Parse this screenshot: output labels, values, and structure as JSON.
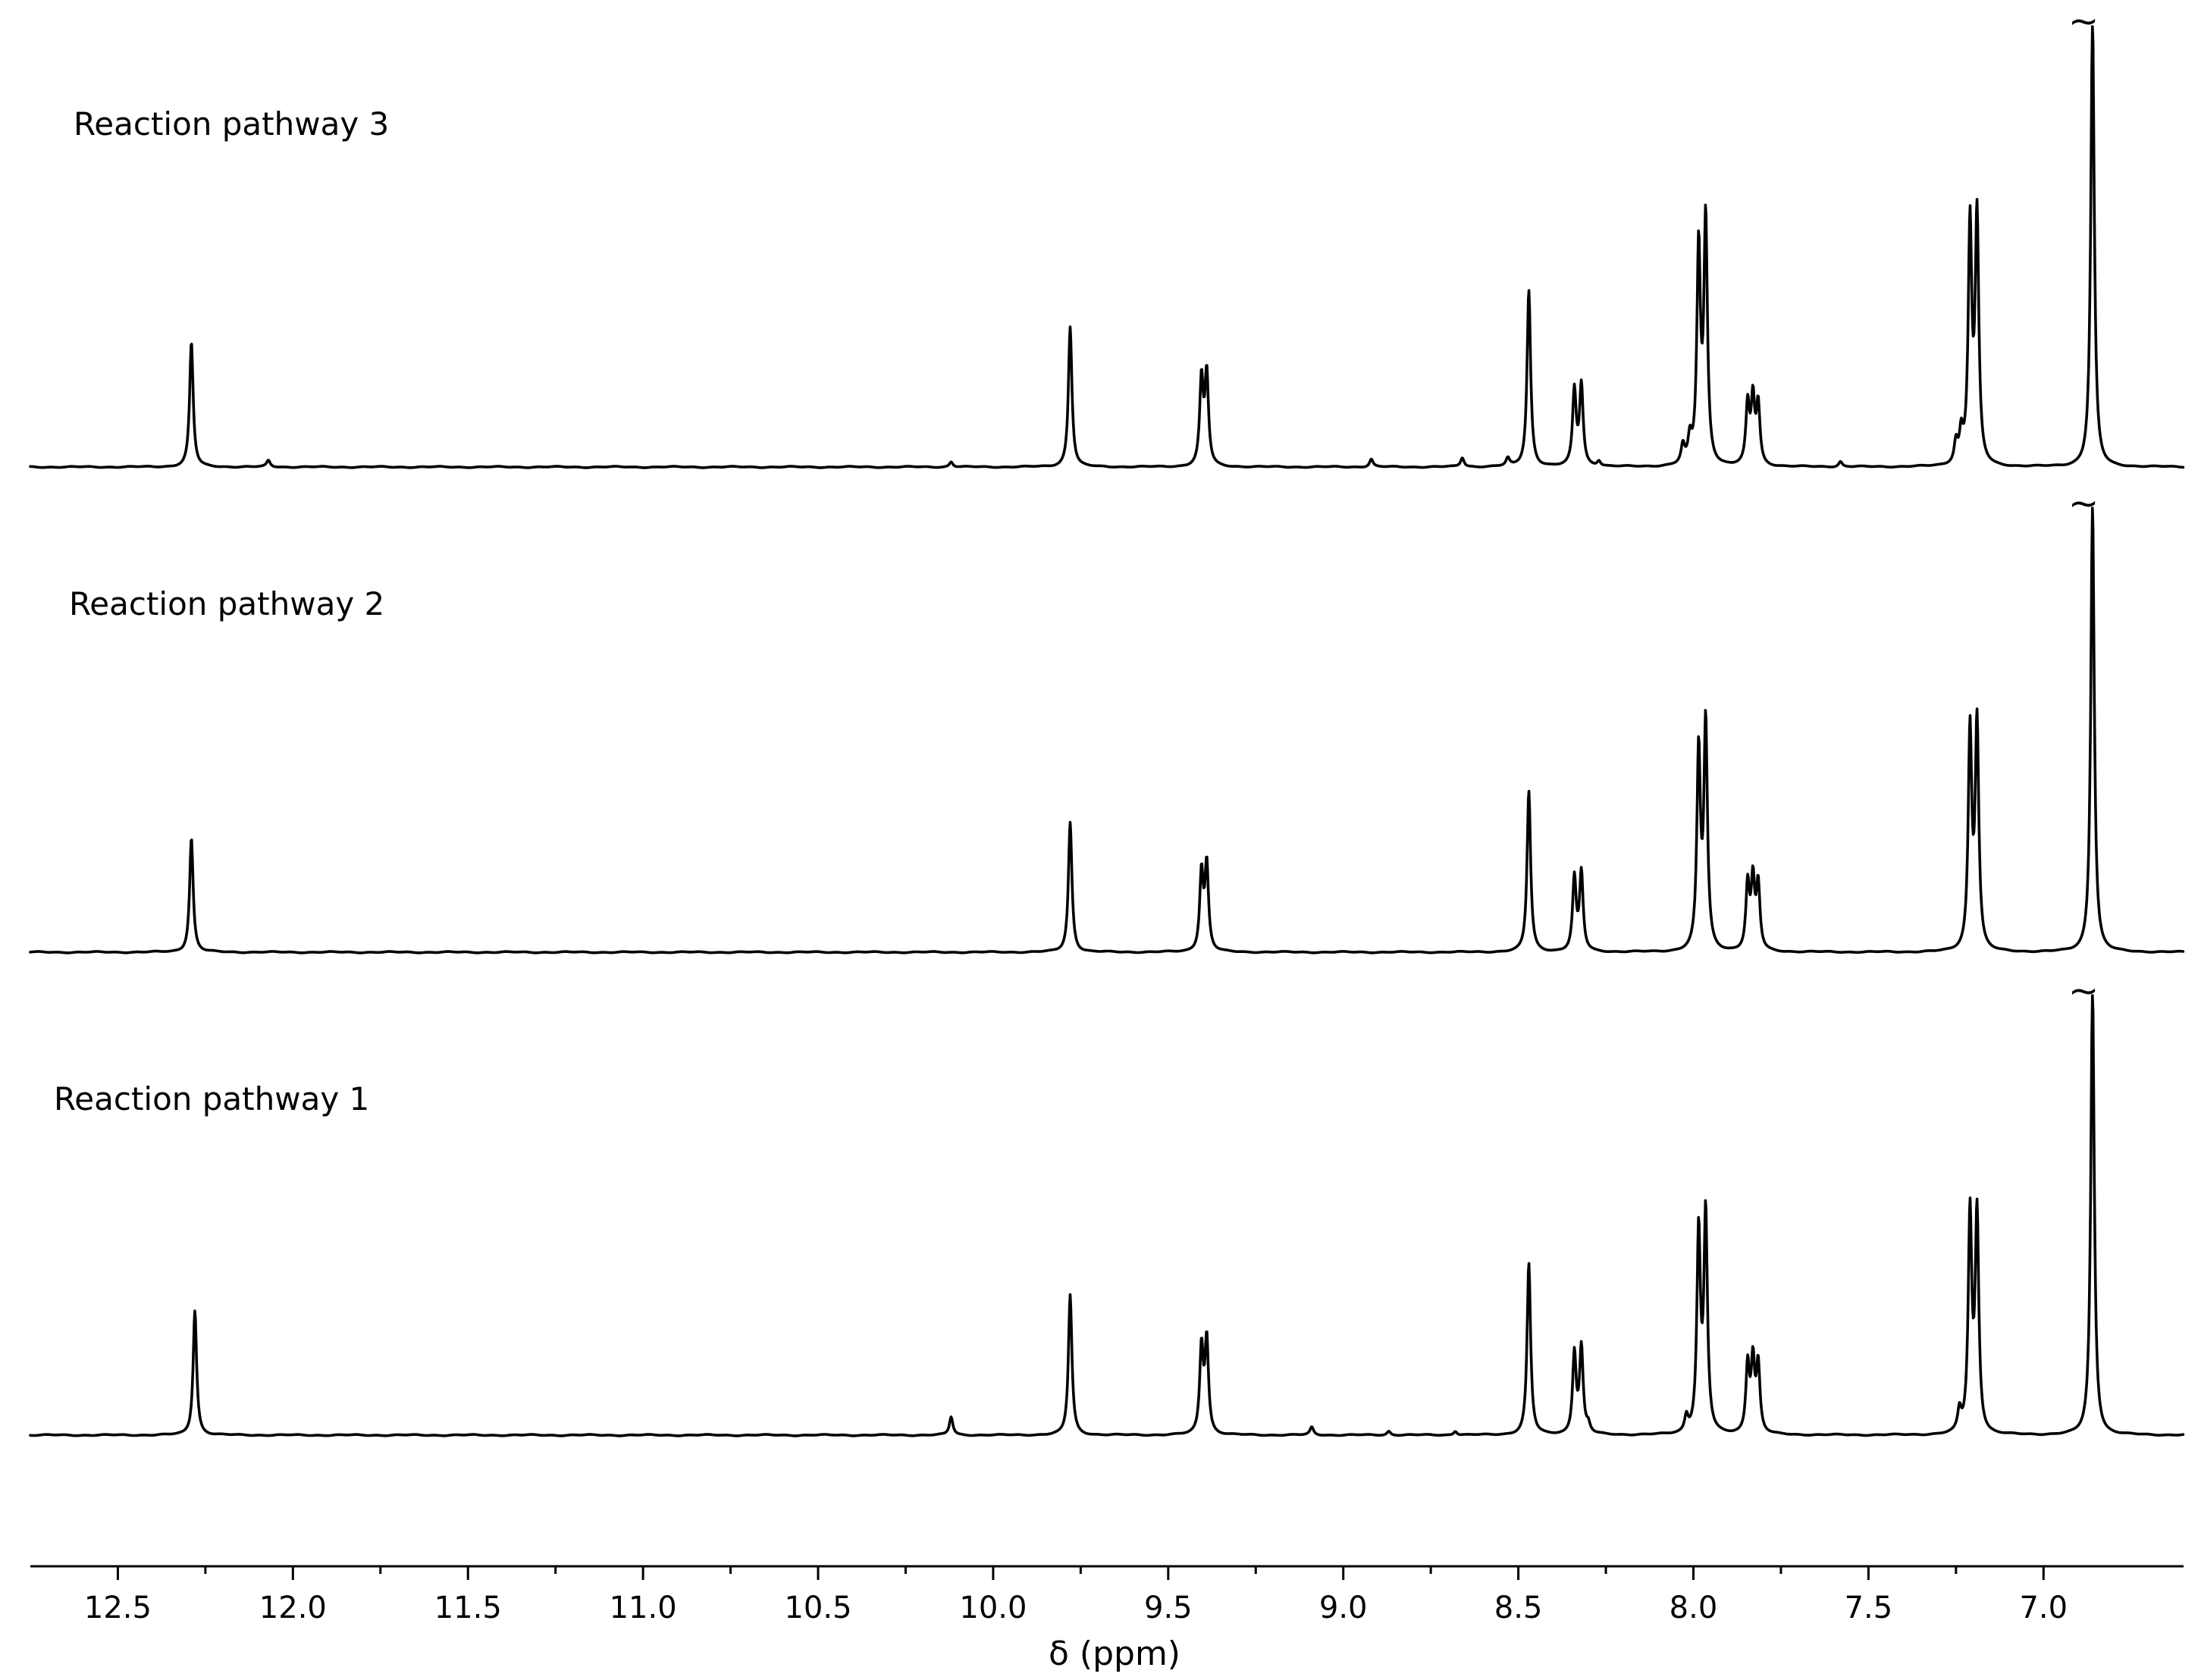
{
  "chart_data": {
    "type": "line",
    "title": "",
    "xlabel": "δ (ppm)",
    "ylabel": "",
    "xlim": [
      12.75,
      6.6
    ],
    "x_reversed": true,
    "grid": false,
    "legend": "none",
    "x_ticks": [
      {
        "value": 12.5,
        "label": "12.5"
      },
      {
        "value": 12.0,
        "label": "12.0"
      },
      {
        "value": 11.5,
        "label": "11.5"
      },
      {
        "value": 11.0,
        "label": "11.0"
      },
      {
        "value": 10.5,
        "label": "10.5"
      },
      {
        "value": 10.0,
        "label": "10.0"
      },
      {
        "value": 9.5,
        "label": "9.5"
      },
      {
        "value": 9.0,
        "label": "9.0"
      },
      {
        "value": 8.5,
        "label": "8.5"
      },
      {
        "value": 8.0,
        "label": "8.0"
      },
      {
        "value": 7.5,
        "label": "7.5"
      },
      {
        "value": 7.0,
        "label": "7.0"
      }
    ],
    "peak_truncation_mark": "~",
    "series": [
      {
        "name": "Reaction pathway 3",
        "peaks": [
          {
            "x": 12.29,
            "h": 0.48
          },
          {
            "x": 12.07,
            "h": 0.025
          },
          {
            "x": 10.12,
            "h": 0.02
          },
          {
            "x": 9.78,
            "h": 0.54
          },
          {
            "x": 9.405,
            "h": 0.33
          },
          {
            "x": 9.39,
            "h": 0.35
          },
          {
            "x": 8.92,
            "h": 0.03
          },
          {
            "x": 8.66,
            "h": 0.035
          },
          {
            "x": 8.53,
            "h": 0.03
          },
          {
            "x": 8.47,
            "h": 0.68
          },
          {
            "x": 8.34,
            "h": 0.29
          },
          {
            "x": 8.32,
            "h": 0.31
          },
          {
            "x": 8.27,
            "h": 0.02
          },
          {
            "x": 8.03,
            "h": 0.07
          },
          {
            "x": 8.01,
            "h": 0.09
          },
          {
            "x": 7.985,
            "h": 0.83
          },
          {
            "x": 7.965,
            "h": 0.94
          },
          {
            "x": 7.845,
            "h": 0.23
          },
          {
            "x": 7.83,
            "h": 0.25
          },
          {
            "x": 7.815,
            "h": 0.23
          },
          {
            "x": 7.58,
            "h": 0.02
          },
          {
            "x": 7.25,
            "h": 0.08
          },
          {
            "x": 7.235,
            "h": 0.11
          },
          {
            "x": 7.21,
            "h": 0.92
          },
          {
            "x": 7.19,
            "h": 0.95
          },
          {
            "x": 6.86,
            "h": 1.72
          }
        ]
      },
      {
        "name": "Reaction pathway 2",
        "peaks": [
          {
            "x": 12.29,
            "h": 0.44
          },
          {
            "x": 9.78,
            "h": 0.5
          },
          {
            "x": 9.405,
            "h": 0.3
          },
          {
            "x": 9.39,
            "h": 0.33
          },
          {
            "x": 8.47,
            "h": 0.62
          },
          {
            "x": 8.34,
            "h": 0.28
          },
          {
            "x": 8.32,
            "h": 0.3
          },
          {
            "x": 7.985,
            "h": 0.76
          },
          {
            "x": 7.965,
            "h": 0.87
          },
          {
            "x": 7.845,
            "h": 0.25
          },
          {
            "x": 7.83,
            "h": 0.26
          },
          {
            "x": 7.815,
            "h": 0.25
          },
          {
            "x": 7.21,
            "h": 0.84
          },
          {
            "x": 7.19,
            "h": 0.87
          },
          {
            "x": 6.86,
            "h": 1.72
          }
        ]
      },
      {
        "name": "Reaction pathway 1",
        "peaks": [
          {
            "x": 12.28,
            "h": 0.48
          },
          {
            "x": 10.12,
            "h": 0.07
          },
          {
            "x": 9.78,
            "h": 0.54
          },
          {
            "x": 9.405,
            "h": 0.33
          },
          {
            "x": 9.39,
            "h": 0.36
          },
          {
            "x": 9.09,
            "h": 0.03
          },
          {
            "x": 8.87,
            "h": 0.015
          },
          {
            "x": 8.68,
            "h": 0.015
          },
          {
            "x": 8.47,
            "h": 0.66
          },
          {
            "x": 8.34,
            "h": 0.31
          },
          {
            "x": 8.32,
            "h": 0.33
          },
          {
            "x": 8.3,
            "h": 0.03
          },
          {
            "x": 8.02,
            "h": 0.06
          },
          {
            "x": 7.985,
            "h": 0.77
          },
          {
            "x": 7.965,
            "h": 0.84
          },
          {
            "x": 7.845,
            "h": 0.26
          },
          {
            "x": 7.83,
            "h": 0.27
          },
          {
            "x": 7.815,
            "h": 0.26
          },
          {
            "x": 7.24,
            "h": 0.08
          },
          {
            "x": 7.21,
            "h": 0.84
          },
          {
            "x": 7.19,
            "h": 0.84
          },
          {
            "x": 6.86,
            "h": 1.72
          }
        ]
      }
    ]
  }
}
